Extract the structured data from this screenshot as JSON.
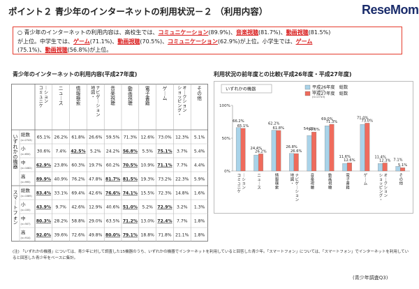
{
  "header": {
    "title": "ポイント２ 青少年のインターネットの利用状況－２ （利用内容）",
    "logo_main": "ReseMom",
    "logo_dot": "."
  },
  "summary": {
    "bullet": "○",
    "t1": "青少年のインターネットの利用内容は、高校生では、",
    "h1": "コミュニケーション",
    "t2": "(89.9%)、",
    "h2": "音楽視聴",
    "t3": "(81.7%)、",
    "h3": "動画視聴",
    "t4": "(81.5%)",
    "t5": "が上位。中学生では、",
    "h4": "ゲーム",
    "t6": "(71.1%)、",
    "h5": "動画視聴",
    "t7": "(70.5%)、",
    "h6": "コミュニケーション",
    "t8": "(62.9%)が上位。小学生では、",
    "h7": "ゲーム",
    "t9": "(75.1%)、",
    "h8": "動画視聴",
    "t10": "(56.8%)が上位。"
  },
  "table": {
    "title": "青少年のインターネットの利用内容(平成27年度)",
    "headers": [
      "コミュニケーション",
      "ニュース",
      "情報検索",
      "地図・ナビゲーション",
      "音楽視聴",
      "動画視聴",
      "電子書籍",
      "ゲーム",
      "ショッピング・オークション",
      "その他"
    ],
    "group_labels": [
      "いずれかの機器",
      "スマートフォン"
    ],
    "rows": [
      {
        "label": "総数",
        "n": "(n=2743)",
        "values": [
          "65.1%",
          "26.2%",
          "61.8%",
          "26.6%",
          "59.5%",
          "71.3%",
          "12.6%",
          "73.0%",
          "12.3%",
          "5.1%"
        ]
      },
      {
        "label": "小",
        "n": "(n=650)",
        "values": [
          "30.6%",
          "7.4%",
          "42.5%",
          "5.2%",
          "24.2%",
          "56.8%",
          "5.5%",
          "75.1%",
          "3.7%",
          "5.4%"
        ]
      },
      {
        "label": "中",
        "n": "(n=1082)",
        "values": [
          "62.9%",
          "23.8%",
          "60.3%",
          "19.7%",
          "60.2%",
          "70.5%",
          "10.9%",
          "71.1%",
          "7.7%",
          "4.4%"
        ]
      },
      {
        "label": "高",
        "n": "(n=995)",
        "values": [
          "89.9%",
          "40.9%",
          "76.2%",
          "47.8%",
          "81.7%",
          "81.5%",
          "19.3%",
          "73.2%",
          "22.3%",
          "5.9%"
        ]
      },
      {
        "label": "総数",
        "n": "(n=1589)",
        "values": [
          "83.4%",
          "33.1%",
          "69.4%",
          "42.6%",
          "76.6%",
          "74.1%",
          "15.5%",
          "72.3%",
          "14.8%",
          "1.6%"
        ]
      },
      {
        "label": "小",
        "n": "(n=155)",
        "values": [
          "43.9%",
          "9.7%",
          "42.6%",
          "12.9%",
          "40.6%",
          "51.0%",
          "5.2%",
          "72.9%",
          "3.2%",
          "1.3%"
        ]
      },
      {
        "label": "中",
        "n": "(n=507)",
        "values": [
          "80.3%",
          "28.2%",
          "58.8%",
          "29.0%",
          "63.5%",
          "71.2%",
          "13.0%",
          "72.4%",
          "7.7%",
          "1.8%"
        ]
      },
      {
        "label": "高",
        "n": "(n=914)",
        "values": [
          "92.0%",
          "39.6%",
          "72.6%",
          "49.8%",
          "80.0%",
          "79.1%",
          "18.8%",
          "71.8%",
          "21.1%",
          "1.8%"
        ]
      }
    ],
    "underlined": [
      "1-2",
      "1-5",
      "1-7",
      "2-0",
      "2-5",
      "2-7",
      "3-0",
      "3-4",
      "3-5",
      "4-0",
      "4-4",
      "4-5",
      "5-0",
      "5-5",
      "5-7",
      "6-0",
      "6-5",
      "6-7",
      "7-0",
      "7-4",
      "7-5"
    ]
  },
  "chart_data": {
    "type": "bar",
    "title": "利用状況の前年度との比較(平成26年度・平成27年度)",
    "box_label": "いずれかの機器",
    "categories": [
      "コミュニケーション",
      "ニュース",
      "情報検索",
      "地図・ナビゲーション",
      "音楽視聴",
      "動画視聴",
      "電子書籍",
      "ゲーム",
      "ショッピング・オークション",
      "その他"
    ],
    "series": [
      {
        "name": "平成26年度　総数",
        "note": "(n=2615)",
        "color": "#a9d3e9",
        "values": [
          66.2,
          24.4,
          62.2,
          26.8,
          54.2,
          69.0,
          11.6,
          71.0,
          11.4,
          7.1
        ]
      },
      {
        "name": "平成27年度　総数",
        "note": "(n=2743)",
        "color": "#ef6b5c",
        "values": [
          65.1,
          26.2,
          61.8,
          26.6,
          59.5,
          71.3,
          12.6,
          73.0,
          12.3,
          5.1
        ]
      }
    ],
    "ylim": [
      0,
      100
    ],
    "yticks": [
      "0%",
      "50%",
      "100%"
    ],
    "grid": false,
    "legend": "top-center"
  },
  "footer": {
    "note": "(注) 「いずれかの機器」については、青少年に対して調査した15機器のうち、いずれかの機器でインターネットを利用していると回答した青少年。「スマートフォン」については、「スマートフォン」でインターネットを利用していると回答した青少年をベースに集計。",
    "source": "(青少年調査Q3)"
  },
  "colors": {
    "accent": "#e53b2c",
    "highlight": "#d91c1c",
    "series_2014": "#a9d3e9",
    "series_2015": "#ef6b5c"
  }
}
